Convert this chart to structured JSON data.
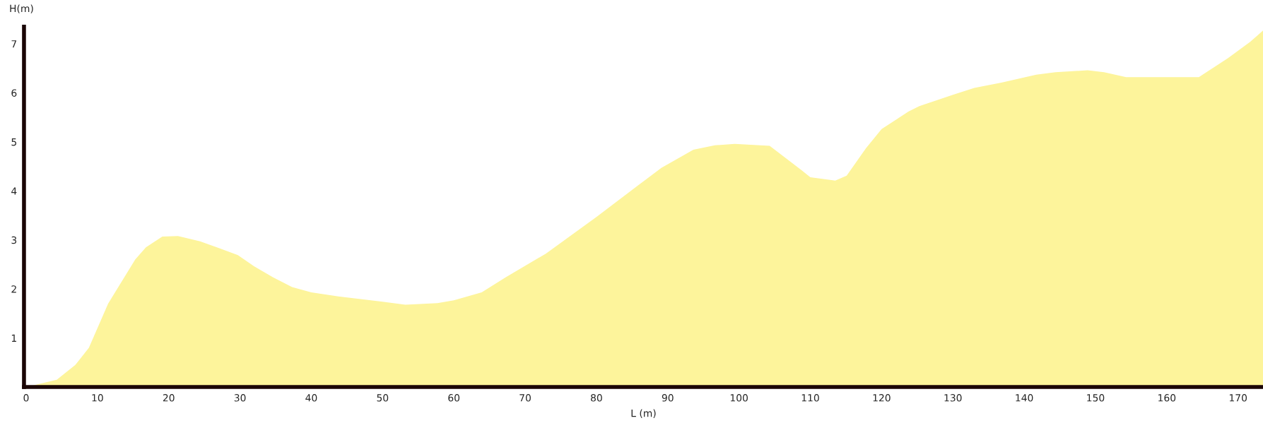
{
  "chart_data": {
    "type": "area",
    "xlabel": "L (m)",
    "ylabel": "H(m)",
    "color": "#fdf49b",
    "x": [
      0,
      4.3,
      6.9,
      8.8,
      11.5,
      15.3,
      16.8,
      19.1,
      21.3,
      24.4,
      27.1,
      29.7,
      32.0,
      34.6,
      37.3,
      40,
      43.8,
      50,
      53.2,
      57.7,
      60,
      63.9,
      67.3,
      72.9,
      80,
      86.1,
      89.1,
      93.6,
      96.6,
      99.4,
      104.3,
      108.8,
      110,
      113.5,
      115.1,
      117.8,
      120,
      123.8,
      125.3,
      130,
      133,
      136.8,
      141.7,
      144.4,
      148.9,
      151.2,
      154.3,
      159.6,
      164.5,
      168.6,
      171.7,
      173.5
    ],
    "values": [
      0,
      0.15,
      0.45,
      0.8,
      1.7,
      2.6,
      2.85,
      3.07,
      3.08,
      2.97,
      2.83,
      2.69,
      2.46,
      2.24,
      2.04,
      1.93,
      1.85,
      1.74,
      1.68,
      1.71,
      1.77,
      1.93,
      2.24,
      2.72,
      3.47,
      4.14,
      4.47,
      4.84,
      4.93,
      4.96,
      4.92,
      4.42,
      4.28,
      4.21,
      4.31,
      4.87,
      5.26,
      5.62,
      5.73,
      5.96,
      6.1,
      6.21,
      6.37,
      6.42,
      6.46,
      6.42,
      6.32,
      6.32,
      6.32,
      6.71,
      7.04,
      7.27
    ],
    "xlim": [
      -0.3,
      173.5
    ],
    "ylim": [
      0,
      7.35
    ],
    "xticks": [
      0,
      10,
      20,
      30,
      40,
      50,
      60,
      70,
      80,
      90,
      100,
      110,
      120,
      130,
      140,
      150,
      160,
      170
    ],
    "yticks": [
      1,
      2,
      3,
      4,
      5,
      6,
      7
    ],
    "grid": false,
    "legend": false
  }
}
